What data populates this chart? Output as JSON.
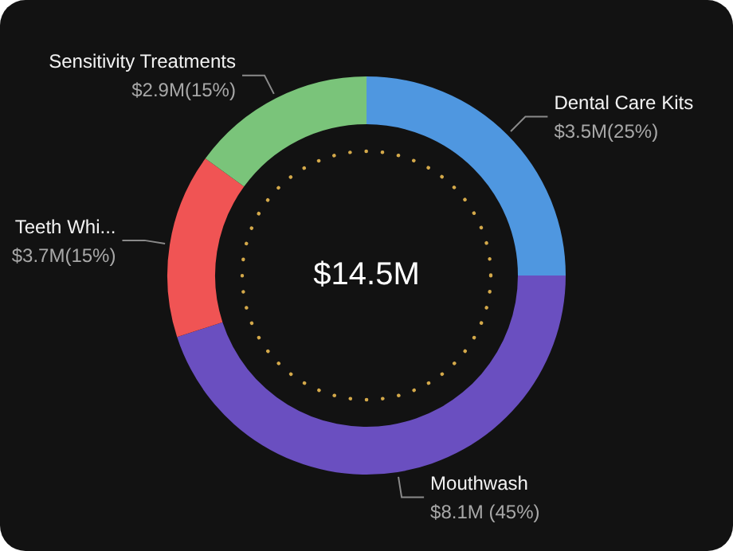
{
  "chart_data": {
    "type": "donut",
    "categories": [
      "Dental Care Kits",
      "Mouthwash",
      "Teeth Whi...",
      "Sensitivity Treatments"
    ],
    "values": [
      25,
      45,
      15,
      15
    ],
    "colors": [
      "#4f97e0",
      "#6a4fc0",
      "#f05454",
      "#7ac47a"
    ],
    "value_labels": [
      "$3.5M(25%)",
      "$8.1M (45%)",
      "$3.7M(15%)",
      "$2.9M(15%)"
    ],
    "annotations": [
      "$14.5M"
    ]
  }
}
